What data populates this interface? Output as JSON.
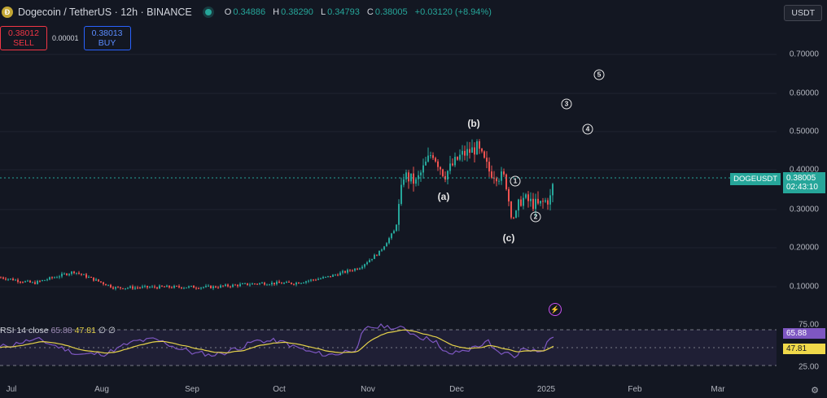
{
  "header": {
    "symbol_title": "Dogecoin / TetherUS · 12h · BINANCE",
    "ohlc": [
      {
        "k": "O",
        "v": "0.34886"
      },
      {
        "k": "H",
        "v": "0.38290"
      },
      {
        "k": "L",
        "v": "0.34793"
      },
      {
        "k": "C",
        "v": "0.38005"
      },
      {
        "k": "",
        "v": "+0.03120 (+8.94%)"
      }
    ]
  },
  "trade": {
    "sell_price": "0.38012",
    "sell_label": "SELL",
    "spread": "0.00001",
    "buy_price": "0.38013",
    "buy_label": "BUY"
  },
  "currency": "USDT",
  "price_axis": {
    "labels": [
      "0.70000",
      "0.60000",
      "0.50000",
      "0.40000",
      "0.30000",
      "0.20000",
      "0.10000"
    ]
  },
  "current_price": {
    "symbol": "DOGEUSDT",
    "price": "0.38005",
    "countdown": "02:43:10"
  },
  "annotations": {
    "a": "(a)",
    "b": "(b)",
    "c": "(c)",
    "w1": "1",
    "w2": "2",
    "w3": "3",
    "w4": "4",
    "w5": "5"
  },
  "rsi": {
    "legend_name": "RSI 14 close",
    "value1": "65.88",
    "value2": "47.81",
    "extra": "∅ ∅",
    "axis_labels": [
      "75.00",
      "25.00"
    ]
  },
  "time_axis": {
    "labels": [
      "Jul",
      "Aug",
      "Sep",
      "Oct",
      "Nov",
      "Dec",
      "2025",
      "Feb",
      "Mar"
    ]
  },
  "colors": {
    "up": "#26a69a",
    "down": "#ef5350",
    "rsi": "#7e57c2",
    "rsi_ma": "#e5d24a",
    "bg": "#131722"
  },
  "chart_data": {
    "type": "candlestick",
    "price_ylim": [
      0.0,
      0.75
    ],
    "series_summary": [
      {
        "period": "Jul",
        "approx_close": 0.12
      },
      {
        "period": "Aug",
        "approx_close": 0.1
      },
      {
        "period": "Sep",
        "approx_close": 0.1
      },
      {
        "period": "Oct",
        "approx_close": 0.11
      },
      {
        "period": "Nov",
        "approx_close": 0.38
      },
      {
        "period": "Dec",
        "approx_close": 0.4
      },
      {
        "period": "2025",
        "approx_close": 0.38
      }
    ],
    "rsi_levels": [
      75,
      50,
      25
    ]
  }
}
